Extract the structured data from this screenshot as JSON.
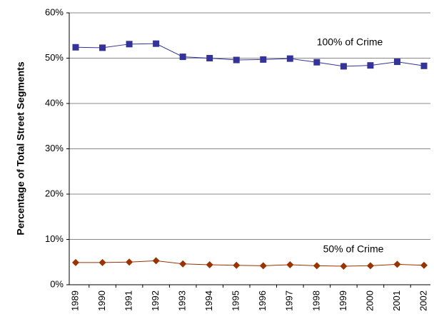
{
  "chart_data": {
    "type": "line",
    "y_label": "Percentage of Total Street Segments",
    "categories": [
      "1989",
      "1990",
      "1991",
      "1992",
      "1993",
      "1994",
      "1995",
      "1996",
      "1997",
      "1998",
      "1999",
      "2000",
      "2001",
      "2002"
    ],
    "series": [
      {
        "name": "100% of Crime",
        "color": "#333399",
        "marker": "square",
        "values": [
          52.4,
          52.3,
          53.1,
          53.2,
          50.3,
          50.0,
          49.6,
          49.7,
          49.9,
          49.1,
          48.2,
          48.4,
          49.2,
          48.3
        ]
      },
      {
        "name": "50% of Crime",
        "color": "#993300",
        "marker": "diamond",
        "values": [
          4.9,
          4.9,
          5.0,
          5.3,
          4.6,
          4.4,
          4.3,
          4.2,
          4.4,
          4.2,
          4.1,
          4.2,
          4.5,
          4.3
        ]
      }
    ],
    "ylim": [
      0,
      60
    ],
    "yticks": [
      {
        "value": 0,
        "label": "0%"
      },
      {
        "value": 10,
        "label": "10%"
      },
      {
        "value": 20,
        "label": "20%"
      },
      {
        "value": 30,
        "label": "30%"
      },
      {
        "value": 40,
        "label": "40%"
      },
      {
        "value": 50,
        "label": "50%"
      },
      {
        "value": 60,
        "label": "60%"
      }
    ],
    "grid": true
  }
}
